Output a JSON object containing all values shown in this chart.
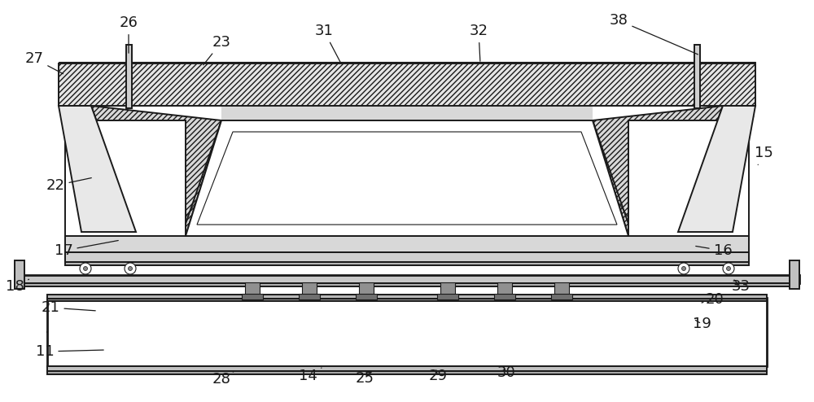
{
  "bg_color": "#ffffff",
  "lc": "#1a1a1a",
  "fig_width": 10.0,
  "fig_height": 4.94,
  "annotations": [
    [
      "26",
      158,
      68,
      158,
      28
    ],
    [
      "27",
      80,
      92,
      42,
      72
    ],
    [
      "23",
      248,
      82,
      272,
      52
    ],
    [
      "31",
      420,
      80,
      398,
      38
    ],
    [
      "32",
      590,
      78,
      588,
      38
    ],
    [
      "38",
      860,
      68,
      760,
      25
    ],
    [
      "15",
      930,
      205,
      938,
      188
    ],
    [
      "22",
      115,
      218,
      68,
      228
    ],
    [
      "17",
      148,
      295,
      78,
      308
    ],
    [
      "16",
      852,
      302,
      888,
      308
    ],
    [
      "18",
      38,
      342,
      18,
      352
    ],
    [
      "33",
      900,
      342,
      910,
      352
    ],
    [
      "21",
      120,
      382,
      62,
      378
    ],
    [
      "20",
      862,
      372,
      878,
      368
    ],
    [
      "19",
      852,
      392,
      862,
      398
    ],
    [
      "11",
      130,
      430,
      55,
      432
    ],
    [
      "28",
      288,
      456,
      272,
      466
    ],
    [
      "14",
      395,
      452,
      378,
      462
    ],
    [
      "25",
      458,
      455,
      448,
      465
    ],
    [
      "29",
      535,
      452,
      538,
      462
    ],
    [
      "30",
      618,
      449,
      622,
      458
    ]
  ]
}
